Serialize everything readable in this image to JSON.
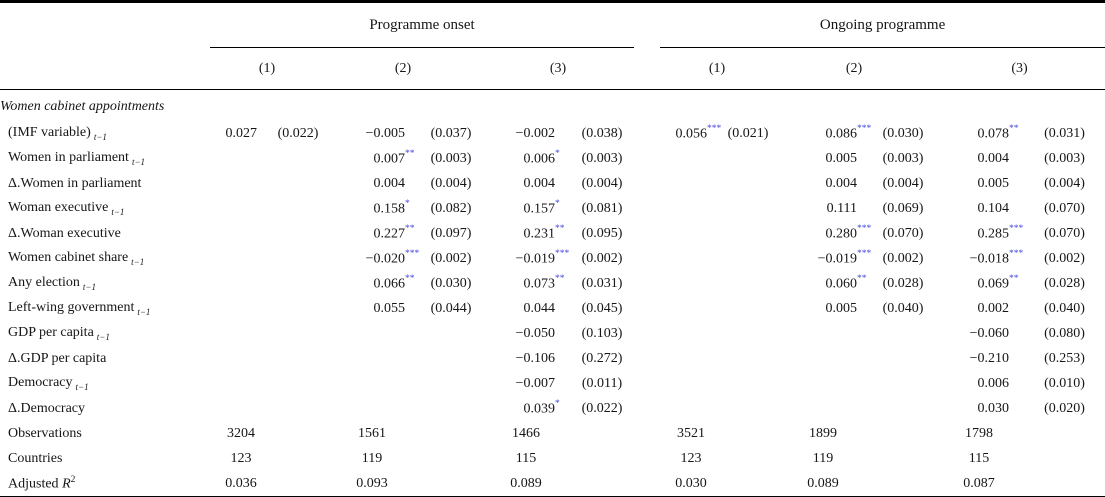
{
  "colors": {
    "star": "#4343de",
    "text": "#161616",
    "rule": "#000000",
    "background": "#ffffff"
  },
  "panels": [
    {
      "title": "Programme onset",
      "columns": [
        "(1)",
        "(2)",
        "(3)"
      ]
    },
    {
      "title": "Ongoing programme",
      "columns": [
        "(1)",
        "(2)",
        "(3)"
      ]
    }
  ],
  "body": {
    "section_header": "Women cabinet appointments",
    "rows": [
      {
        "label": "(IMF variable)",
        "sub": "t−1",
        "label_math": "",
        "label_sup": "",
        "stat": false,
        "cells": [
          "0.027",
          "(0.022)",
          "−0.005",
          "(0.037)",
          "−0.002",
          "(0.038)",
          "0.056",
          "(0.021)",
          "0.086",
          "(0.030)",
          "0.078",
          "(0.031)"
        ],
        "stars": [
          "",
          "",
          "",
          "***",
          "***",
          "**"
        ]
      },
      {
        "label": "Women in parliament",
        "sub": "t−1",
        "label_math": "",
        "label_sup": "",
        "stat": false,
        "cells": [
          "",
          "",
          "0.007",
          "(0.003)",
          "0.006",
          "(0.003)",
          "",
          "",
          "0.005",
          "(0.003)",
          "0.004",
          "(0.003)"
        ],
        "stars": [
          "",
          "**",
          "*",
          "",
          "",
          ""
        ]
      },
      {
        "label": "Δ.Women in parliament",
        "sub": "",
        "label_math": "",
        "label_sup": "",
        "stat": false,
        "cells": [
          "",
          "",
          "0.004",
          "(0.004)",
          "0.004",
          "(0.004)",
          "",
          "",
          "0.004",
          "(0.004)",
          "0.005",
          "(0.004)"
        ],
        "stars": [
          "",
          "",
          "",
          "",
          "",
          ""
        ]
      },
      {
        "label": "Woman executive",
        "sub": "t−1",
        "label_math": "",
        "label_sup": "",
        "stat": false,
        "cells": [
          "",
          "",
          "0.158",
          "(0.082)",
          "0.157",
          "(0.081)",
          "",
          "",
          "0.111",
          "(0.069)",
          "0.104",
          "(0.070)"
        ],
        "stars": [
          "",
          "*",
          "*",
          "",
          "",
          ""
        ]
      },
      {
        "label": "Δ.Woman executive",
        "sub": "",
        "label_math": "",
        "label_sup": "",
        "stat": false,
        "cells": [
          "",
          "",
          "0.227",
          "(0.097)",
          "0.231",
          "(0.095)",
          "",
          "",
          "0.280",
          "(0.070)",
          "0.285",
          "(0.070)"
        ],
        "stars": [
          "",
          "**",
          "**",
          "",
          "***",
          "***"
        ]
      },
      {
        "label": "Women cabinet share",
        "sub": "t−1",
        "label_math": "",
        "label_sup": "",
        "stat": false,
        "cells": [
          "",
          "",
          "−0.020",
          "(0.002)",
          "−0.019",
          "(0.002)",
          "",
          "",
          "−0.019",
          "(0.002)",
          "−0.018",
          "(0.002)"
        ],
        "stars": [
          "",
          "***",
          "***",
          "",
          "***",
          "***"
        ]
      },
      {
        "label": "Any election",
        "sub": "t−1",
        "label_math": "",
        "label_sup": "",
        "stat": false,
        "cells": [
          "",
          "",
          "0.066",
          "(0.030)",
          "0.073",
          "(0.031)",
          "",
          "",
          "0.060",
          "(0.028)",
          "0.069",
          "(0.028)"
        ],
        "stars": [
          "",
          "**",
          "**",
          "",
          "**",
          "**"
        ]
      },
      {
        "label": "Left-wing government",
        "sub": "t−1",
        "label_math": "",
        "label_sup": "",
        "stat": false,
        "cells": [
          "",
          "",
          "0.055",
          "(0.044)",
          "0.044",
          "(0.045)",
          "",
          "",
          "0.005",
          "(0.040)",
          "0.002",
          "(0.040)"
        ],
        "stars": [
          "",
          "",
          "",
          "",
          "",
          ""
        ]
      },
      {
        "label": "GDP per capita",
        "sub": "t−1",
        "label_math": "",
        "label_sup": "",
        "stat": false,
        "cells": [
          "",
          "",
          "",
          "",
          "−0.050",
          "(0.103)",
          "",
          "",
          "",
          "",
          "−0.060",
          "(0.080)"
        ],
        "stars": [
          "",
          "",
          "",
          "",
          "",
          ""
        ]
      },
      {
        "label": "Δ.GDP per capita",
        "sub": "",
        "label_math": "",
        "label_sup": "",
        "stat": false,
        "cells": [
          "",
          "",
          "",
          "",
          "−0.106",
          "(0.272)",
          "",
          "",
          "",
          "",
          "−0.210",
          "(0.253)"
        ],
        "stars": [
          "",
          "",
          "",
          "",
          "",
          ""
        ]
      },
      {
        "label": "Democracy",
        "sub": "t−1",
        "label_math": "",
        "label_sup": "",
        "stat": false,
        "cells": [
          "",
          "",
          "",
          "",
          "−0.007",
          "(0.011)",
          "",
          "",
          "",
          "",
          "0.006",
          "(0.010)"
        ],
        "stars": [
          "",
          "",
          "",
          "",
          "",
          ""
        ]
      },
      {
        "label": "Δ.Democracy",
        "sub": "",
        "label_math": "",
        "label_sup": "",
        "stat": false,
        "cells": [
          "",
          "",
          "",
          "",
          "0.039",
          "(0.022)",
          "",
          "",
          "",
          "",
          "0.030",
          "(0.020)"
        ],
        "stars": [
          "",
          "",
          "*",
          "",
          "",
          ""
        ]
      },
      {
        "label": "Observations",
        "sub": "",
        "label_math": "",
        "label_sup": "",
        "stat": true,
        "cells": [
          "3204",
          "",
          "1561",
          "",
          "1466",
          "",
          "3521",
          "",
          "1899",
          "",
          "1798",
          ""
        ],
        "stars": [
          "",
          "",
          "",
          "",
          "",
          ""
        ]
      },
      {
        "label": "Countries",
        "sub": "",
        "label_math": "",
        "label_sup": "",
        "stat": true,
        "cells": [
          "123",
          "",
          "119",
          "",
          "115",
          "",
          "123",
          "",
          "119",
          "",
          "115",
          ""
        ],
        "stars": [
          "",
          "",
          "",
          "",
          "",
          ""
        ]
      },
      {
        "label": "Adjusted ",
        "sub": "",
        "label_math": "R",
        "label_sup": "2",
        "stat": true,
        "cells": [
          "0.036",
          "",
          "0.093",
          "",
          "0.089",
          "",
          "0.030",
          "",
          "0.089",
          "",
          "0.087",
          ""
        ],
        "stars": [
          "",
          "",
          "",
          "",
          "",
          ""
        ]
      }
    ]
  }
}
